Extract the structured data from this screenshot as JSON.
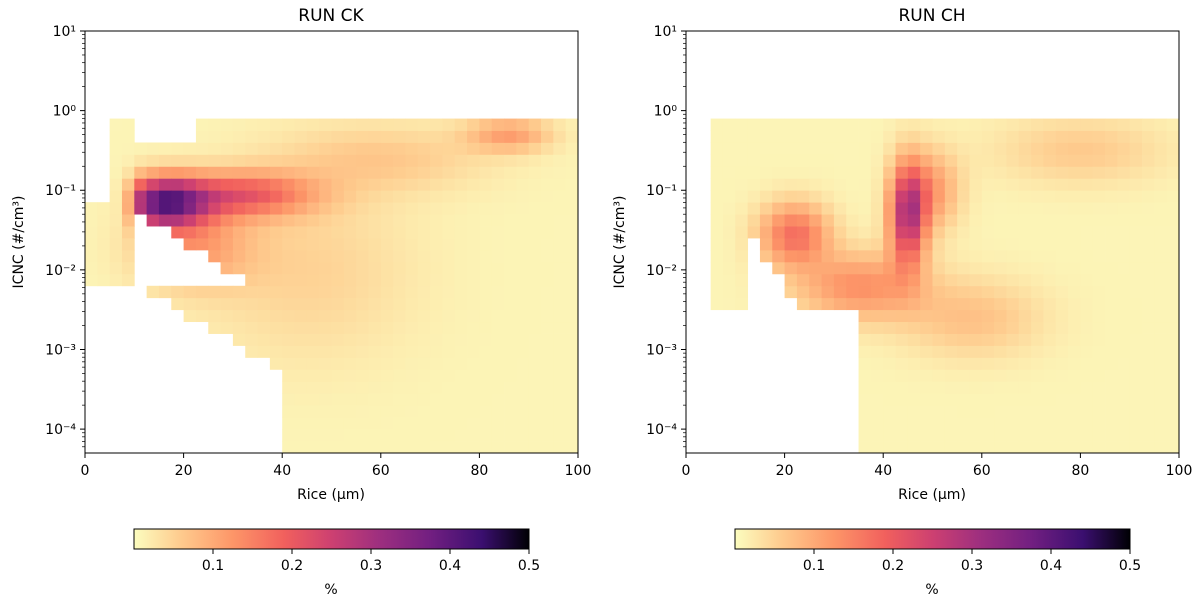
{
  "chart_data": [
    {
      "type": "heatmap",
      "title": "RUN CK",
      "xlabel": "Rice (μm)",
      "ylabel": "ICNC (#/cm³)",
      "xlim": [
        0,
        100
      ],
      "ylim_log10": [
        -4.3,
        1
      ],
      "yscale": "log",
      "x_ticks": [
        "0",
        "20",
        "40",
        "60",
        "80",
        "100"
      ],
      "y_ticks": [
        "10⁻⁴",
        "10⁻³",
        "10⁻²",
        "10⁻¹",
        "10⁰",
        "10¹"
      ],
      "colorbar": {
        "label": "%",
        "min": 0,
        "max": 0.5,
        "ticks": [
          "0.1",
          "0.2",
          "0.3",
          "0.4",
          "0.5"
        ],
        "colormap": "magma_r"
      },
      "grid": false
    },
    {
      "type": "heatmap",
      "title": "RUN CH",
      "xlabel": "Rice (μm)",
      "ylabel": "ICNC (#/cm³)",
      "xlim": [
        0,
        100
      ],
      "ylim_log10": [
        -4.3,
        1
      ],
      "yscale": "log",
      "x_ticks": [
        "0",
        "20",
        "40",
        "60",
        "80",
        "100"
      ],
      "y_ticks": [
        "10⁻⁴",
        "10⁻³",
        "10⁻²",
        "10⁻¹",
        "10⁰",
        "10¹"
      ],
      "colorbar": {
        "label": "%",
        "min": 0,
        "max": 0.5,
        "ticks": [
          "0.1",
          "0.2",
          "0.3",
          "0.4",
          "0.5"
        ],
        "colormap": "magma_r"
      },
      "grid": false
    }
  ]
}
